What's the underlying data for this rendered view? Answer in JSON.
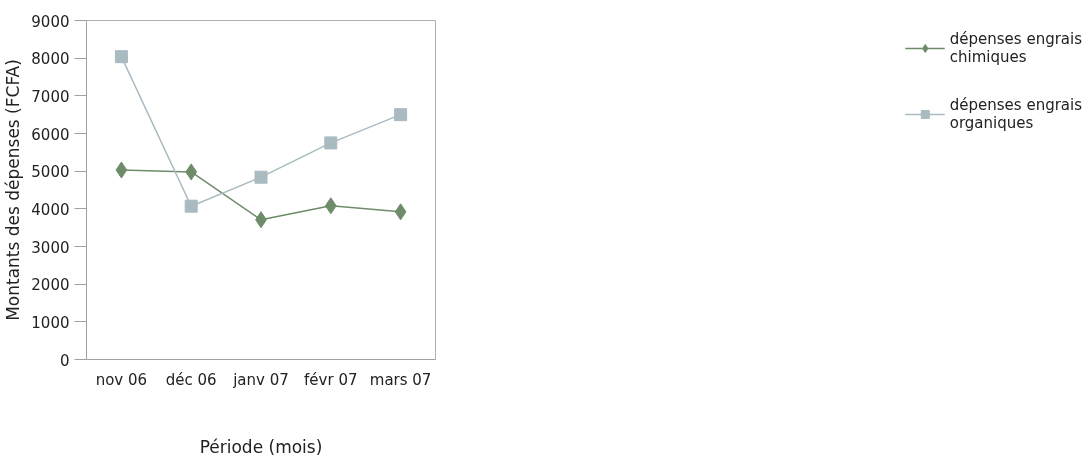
{
  "chart_data": {
    "type": "line",
    "xlabel": "Période (mois)",
    "ylabel": "Montants des dépenses (FCFA)",
    "categories": [
      "nov 06",
      "déc 06",
      "janv 07",
      "févr 07",
      "mars 07"
    ],
    "series": [
      {
        "name": "dépenses engrais chimiques",
        "color": "#6e8b6a",
        "marker": "diamond",
        "values": [
          5030,
          4980,
          3710,
          4080,
          3920
        ]
      },
      {
        "name": "dépenses engrais organiques",
        "color": "#a9bac1",
        "marker": "square",
        "values": [
          8040,
          4070,
          4840,
          5750,
          6500
        ]
      }
    ],
    "ylim": [
      0,
      9000
    ],
    "yticks": [
      0,
      1000,
      2000,
      3000,
      4000,
      5000,
      6000,
      7000,
      8000,
      9000
    ],
    "grid": false,
    "legend": "right"
  }
}
